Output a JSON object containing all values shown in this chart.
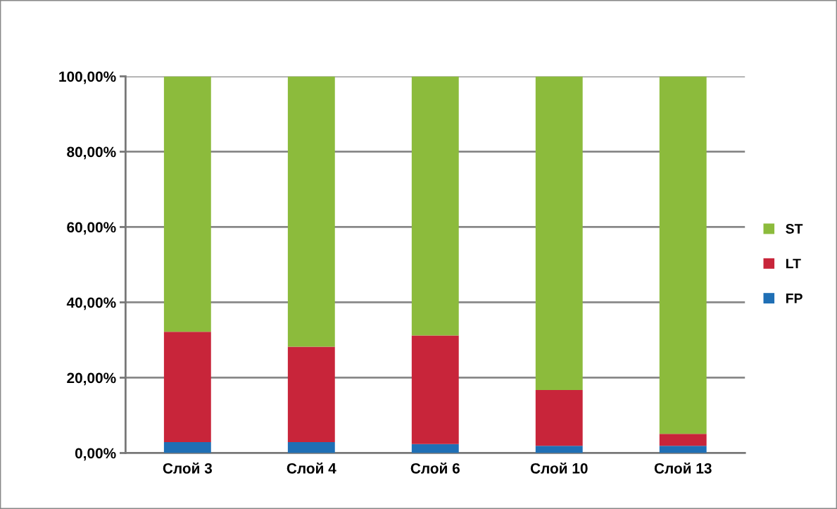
{
  "chart_data": {
    "type": "bar",
    "stacked": true,
    "categories": [
      "Слой 3",
      "Слой 4",
      "Слой 6",
      "Слой 10",
      "Слой 13"
    ],
    "series": [
      {
        "name": "FP",
        "color": "#1f6fb5",
        "values": [
          2.9,
          2.9,
          2.4,
          1.9,
          1.9
        ]
      },
      {
        "name": "LT",
        "color": "#c8253a",
        "values": [
          29.3,
          25.3,
          28.8,
          14.8,
          3.2
        ]
      },
      {
        "name": "ST",
        "color": "#8cbb3c",
        "values": [
          67.8,
          71.8,
          68.8,
          83.3,
          94.9
        ]
      }
    ],
    "ylim": [
      0,
      100
    ],
    "yticks": [
      {
        "value": 0,
        "label": "0,00%"
      },
      {
        "value": 20,
        "label": "20,00%"
      },
      {
        "value": 40,
        "label": "40,00%"
      },
      {
        "value": 60,
        "label": "60,00%"
      },
      {
        "value": 80,
        "label": "80,00%"
      },
      {
        "value": 100,
        "label": "100,00%"
      }
    ],
    "grid": "y",
    "legend": "right"
  }
}
